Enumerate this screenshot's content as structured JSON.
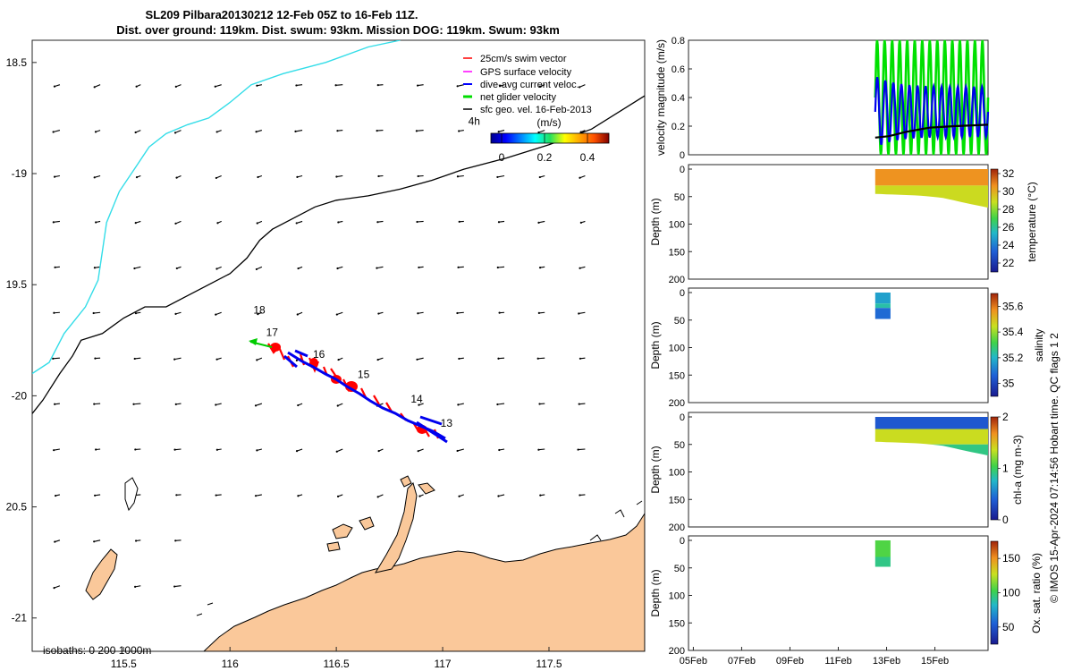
{
  "title": {
    "line1": "SL209 Pilbara20130212 12-Feb 05Z to 16-Feb 11Z.",
    "line2": "Dist. over ground: 119km. Dist. swum: 93km. Mission DOG: 119km. Swum: 93km"
  },
  "copyright": "© IMOS 15-Apr-2024 07:14:56 Hobart time. QC flags 1  2",
  "chart_data": [
    {
      "type": "map",
      "name": "track-map",
      "x_ticks": [
        {
          "v": 115.5,
          "label": "115.5"
        },
        {
          "v": 116,
          "label": "116"
        },
        {
          "v": 116.5,
          "label": "116.5"
        },
        {
          "v": 117,
          "label": "117"
        },
        {
          "v": 117.5,
          "label": "117.5"
        }
      ],
      "y_ticks": [
        {
          "v": -18.5,
          "label": "18.5"
        },
        {
          "v": -19,
          "label": "-19"
        },
        {
          "v": -19.5,
          "label": "19.5"
        },
        {
          "v": -20,
          "label": "-20"
        },
        {
          "v": -20.5,
          "label": "20.5"
        },
        {
          "v": -21,
          "label": "-21"
        }
      ],
      "xlim": [
        115.07,
        117.95
      ],
      "ylim": [
        -21.15,
        -18.4
      ],
      "legend": {
        "position": "top-right",
        "entries": [
          {
            "label": "25cm/s swim vector",
            "color": "#ff0000"
          },
          {
            "label": "GPS surface velocity",
            "color": "#ff00ff"
          },
          {
            "label": "dive-avg current veloc.",
            "color": "#0000ff"
          },
          {
            "label": "net glider velocity",
            "color": "#00dd00"
          },
          {
            "label": "sfc geo. vel. 16-Feb-2013",
            "color": "#000000"
          }
        ],
        "scale_label": "4h"
      },
      "colorbar": {
        "title": "(m/s)",
        "tick_labels": [
          "0",
          "0.2",
          "0.4"
        ],
        "range": [
          -0.05,
          0.5
        ]
      },
      "isobaths": {
        "label": "isobaths: 0   200  1000m",
        "depth_200m": [
          [
            115.07,
            -20.08
          ],
          [
            115.12,
            -20.02
          ],
          [
            115.2,
            -19.9
          ],
          [
            115.26,
            -19.82
          ],
          [
            115.3,
            -19.75
          ],
          [
            115.4,
            -19.72
          ],
          [
            115.5,
            -19.65
          ],
          [
            115.6,
            -19.6
          ],
          [
            115.7,
            -19.6
          ],
          [
            115.8,
            -19.55
          ],
          [
            115.9,
            -19.5
          ],
          [
            116,
            -19.45
          ],
          [
            116.08,
            -19.38
          ],
          [
            116.14,
            -19.3
          ],
          [
            116.2,
            -19.25
          ],
          [
            116.3,
            -19.2
          ],
          [
            116.4,
            -19.15
          ],
          [
            116.5,
            -19.12
          ],
          [
            116.65,
            -19.1
          ],
          [
            116.8,
            -19.07
          ],
          [
            116.95,
            -19.03
          ],
          [
            117.1,
            -18.98
          ],
          [
            117.3,
            -18.93
          ],
          [
            117.5,
            -18.87
          ],
          [
            117.7,
            -18.8
          ],
          [
            117.95,
            -18.65
          ]
        ],
        "depth_1000m": [
          [
            115.07,
            -19.9
          ],
          [
            115.15,
            -19.85
          ],
          [
            115.22,
            -19.72
          ],
          [
            115.32,
            -19.6
          ],
          [
            115.38,
            -19.48
          ],
          [
            115.4,
            -19.35
          ],
          [
            115.42,
            -19.22
          ],
          [
            115.48,
            -19.08
          ],
          [
            115.55,
            -18.98
          ],
          [
            115.62,
            -18.88
          ],
          [
            115.7,
            -18.82
          ],
          [
            115.8,
            -18.78
          ],
          [
            115.9,
            -18.75
          ],
          [
            116,
            -18.68
          ],
          [
            116.1,
            -18.6
          ],
          [
            116.25,
            -18.55
          ],
          [
            116.45,
            -18.5
          ],
          [
            116.65,
            -18.43
          ],
          [
            116.8,
            -18.4
          ]
        ]
      },
      "track_labels": [
        {
          "v": "18",
          "lon": 116.11,
          "lat": -19.63
        },
        {
          "v": "17",
          "lon": 116.17,
          "lat": -19.73
        },
        {
          "v": "16",
          "lon": 116.39,
          "lat": -19.83
        },
        {
          "v": "15",
          "lon": 116.6,
          "lat": -19.92
        },
        {
          "v": "14",
          "lon": 116.85,
          "lat": -20.03
        },
        {
          "v": "13",
          "lon": 116.99,
          "lat": -20.14
        },
        {
          "v": "4h",
          "lon": 117.12,
          "lat": -18.78
        }
      ]
    },
    {
      "type": "line",
      "name": "velocity-panel",
      "ylabel": "velocity magnitude (m/s)",
      "ylim": [
        0,
        0.8
      ],
      "y_ticks": [
        0,
        0.2,
        0.4,
        0.6,
        0.8
      ],
      "xlim": [
        0,
        12.4
      ],
      "series": [
        {
          "name": "net glider velocity",
          "color": "#00e000",
          "x_start": 7.73,
          "x_end": 12.4,
          "cycles": 15,
          "min": 0,
          "max": 0.8
        },
        {
          "name": "dive-avg current veloc.",
          "color": "#0000ee",
          "x_start": 7.73,
          "x_end": 12.4,
          "cycles": 14,
          "min": 0.05,
          "max": 0.55
        },
        {
          "name": "surface",
          "color": "#000000",
          "x": [
            7.73,
            8.3,
            9.0,
            10.0,
            11.0,
            12.4
          ],
          "values": [
            0.12,
            0.13,
            0.16,
            0.19,
            0.2,
            0.21
          ]
        }
      ]
    },
    {
      "type": "heatmap",
      "name": "temperature-panel",
      "ylabel": "Depth (m)",
      "colorbar_label": "temperature (°C)",
      "cbar_ticks": [
        22,
        24,
        26,
        28,
        30,
        32
      ],
      "cbar_range": [
        21,
        32.5
      ],
      "ylim": [
        0,
        200
      ],
      "y_ticks": [
        0,
        50,
        100,
        150,
        200
      ],
      "x_start": 7.73,
      "x_end": 12.4,
      "bottom_depth": [
        [
          7.73,
          45
        ],
        [
          9.5,
          48
        ],
        [
          10.5,
          52
        ],
        [
          11.5,
          62
        ],
        [
          12.4,
          70
        ]
      ],
      "layers": [
        {
          "to": 30,
          "value": 30.5
        },
        {
          "to": 200,
          "value": 28.8
        }
      ]
    },
    {
      "type": "heatmap",
      "name": "salinity-panel",
      "ylabel": "Depth (m)",
      "colorbar_label": "salinity",
      "cbar_ticks": [
        35,
        35.2,
        35.4,
        35.6
      ],
      "cbar_range": [
        34.9,
        35.7
      ],
      "ylim": [
        0,
        200
      ],
      "y_ticks": [
        0,
        50,
        100,
        150,
        200
      ],
      "x_start": 7.73,
      "x_end": 8.36,
      "bottom_depth": [
        [
          7.73,
          48
        ],
        [
          8.36,
          48
        ]
      ],
      "layers": [
        {
          "to": 20,
          "value": 35.13
        },
        {
          "to": 28,
          "value": 35.2
        },
        {
          "to": 200,
          "value": 35.05
        }
      ]
    },
    {
      "type": "heatmap",
      "name": "chla-panel",
      "ylabel": "Depth (m)",
      "colorbar_label": "chl-a (mg m-3)",
      "cbar_ticks": [
        0,
        1,
        2
      ],
      "cbar_range": [
        0,
        2
      ],
      "ylim": [
        0,
        200
      ],
      "y_ticks": [
        0,
        50,
        100,
        150,
        200
      ],
      "x_start": 7.73,
      "x_end": 12.4,
      "bottom_depth": [
        [
          7.73,
          45
        ],
        [
          9.5,
          48
        ],
        [
          10.5,
          52
        ],
        [
          11.5,
          62
        ],
        [
          12.4,
          70
        ]
      ],
      "layers": [
        {
          "to": 22,
          "value": 0.3
        },
        {
          "to": 50,
          "value": 1.35
        },
        {
          "to": 200,
          "value": 0.85
        }
      ]
    },
    {
      "type": "heatmap",
      "name": "oxygen-panel",
      "ylabel": "Depth (m)",
      "colorbar_label": "Ox. sat. ratio (%)",
      "cbar_ticks": [
        50,
        100,
        150
      ],
      "cbar_range": [
        25,
        175
      ],
      "ylim": [
        0,
        200
      ],
      "y_ticks": [
        0,
        50,
        100,
        150,
        200
      ],
      "x_start": 7.73,
      "x_end": 8.36,
      "bottom_depth": [
        [
          7.73,
          48
        ],
        [
          8.36,
          48
        ]
      ],
      "layers": [
        {
          "to": 30,
          "value": 103
        },
        {
          "to": 200,
          "value": 88
        }
      ]
    }
  ],
  "time_axis": {
    "xlim": [
      0,
      12.4
    ],
    "ticks": [
      {
        "v": 0.2,
        "label": "05Feb"
      },
      {
        "v": 2.2,
        "label": "07Feb"
      },
      {
        "v": 4.2,
        "label": "09Feb"
      },
      {
        "v": 6.2,
        "label": "11Feb"
      },
      {
        "v": 8.2,
        "label": "13Feb"
      },
      {
        "v": 10.2,
        "label": "15Feb"
      }
    ]
  }
}
